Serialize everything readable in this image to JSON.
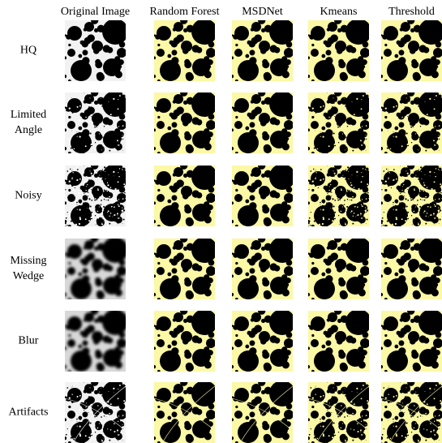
{
  "columns": [
    "Original Image",
    "Random Forest",
    "MSDNet",
    "Kmeans",
    "Threshold"
  ],
  "rows": [
    [
      "HQ"
    ],
    [
      "Limited",
      "Angle"
    ],
    [
      "Noisy"
    ],
    [
      "Missing",
      "Wedge"
    ],
    [
      "Blur"
    ],
    [
      "Artifacts"
    ]
  ]
}
